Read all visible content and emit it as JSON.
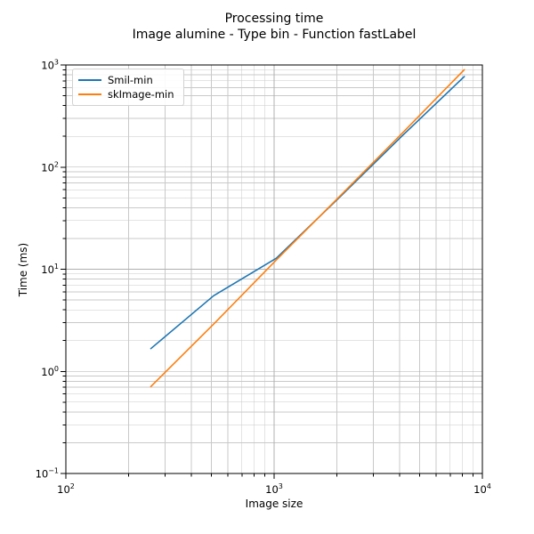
{
  "chart_data": {
    "type": "line",
    "title": "Processing time",
    "subtitle": "Image alumine - Type bin - Function fastLabel",
    "xlabel": "Image size",
    "ylabel": "Time (ms)",
    "xscale": "log",
    "yscale": "log",
    "xlim": [
      100,
      10000
    ],
    "ylim": [
      0.1,
      1000
    ],
    "grid": "major-and-minor",
    "legend_position": "upper-left",
    "x": [
      256,
      512,
      1024,
      2048,
      4096,
      8192
    ],
    "series": [
      {
        "name": "Smil-min",
        "color": "#1f77b4",
        "values": [
          1.67,
          5.5,
          12.8,
          50,
          200,
          770
        ]
      },
      {
        "name": "skImage-min",
        "color": "#ff7f0e",
        "values": [
          0.71,
          2.9,
          12.3,
          51,
          212,
          900
        ]
      }
    ],
    "x_tick_exponents": [
      2,
      3,
      4
    ],
    "y_tick_exponents": [
      3,
      2,
      1,
      0,
      -1
    ]
  },
  "colors": {
    "background": "#ffffff",
    "axis": "#000000",
    "tick_text": "#000000",
    "grid_major": "#b0b0b0",
    "grid_minor": "#c9c9c9"
  }
}
